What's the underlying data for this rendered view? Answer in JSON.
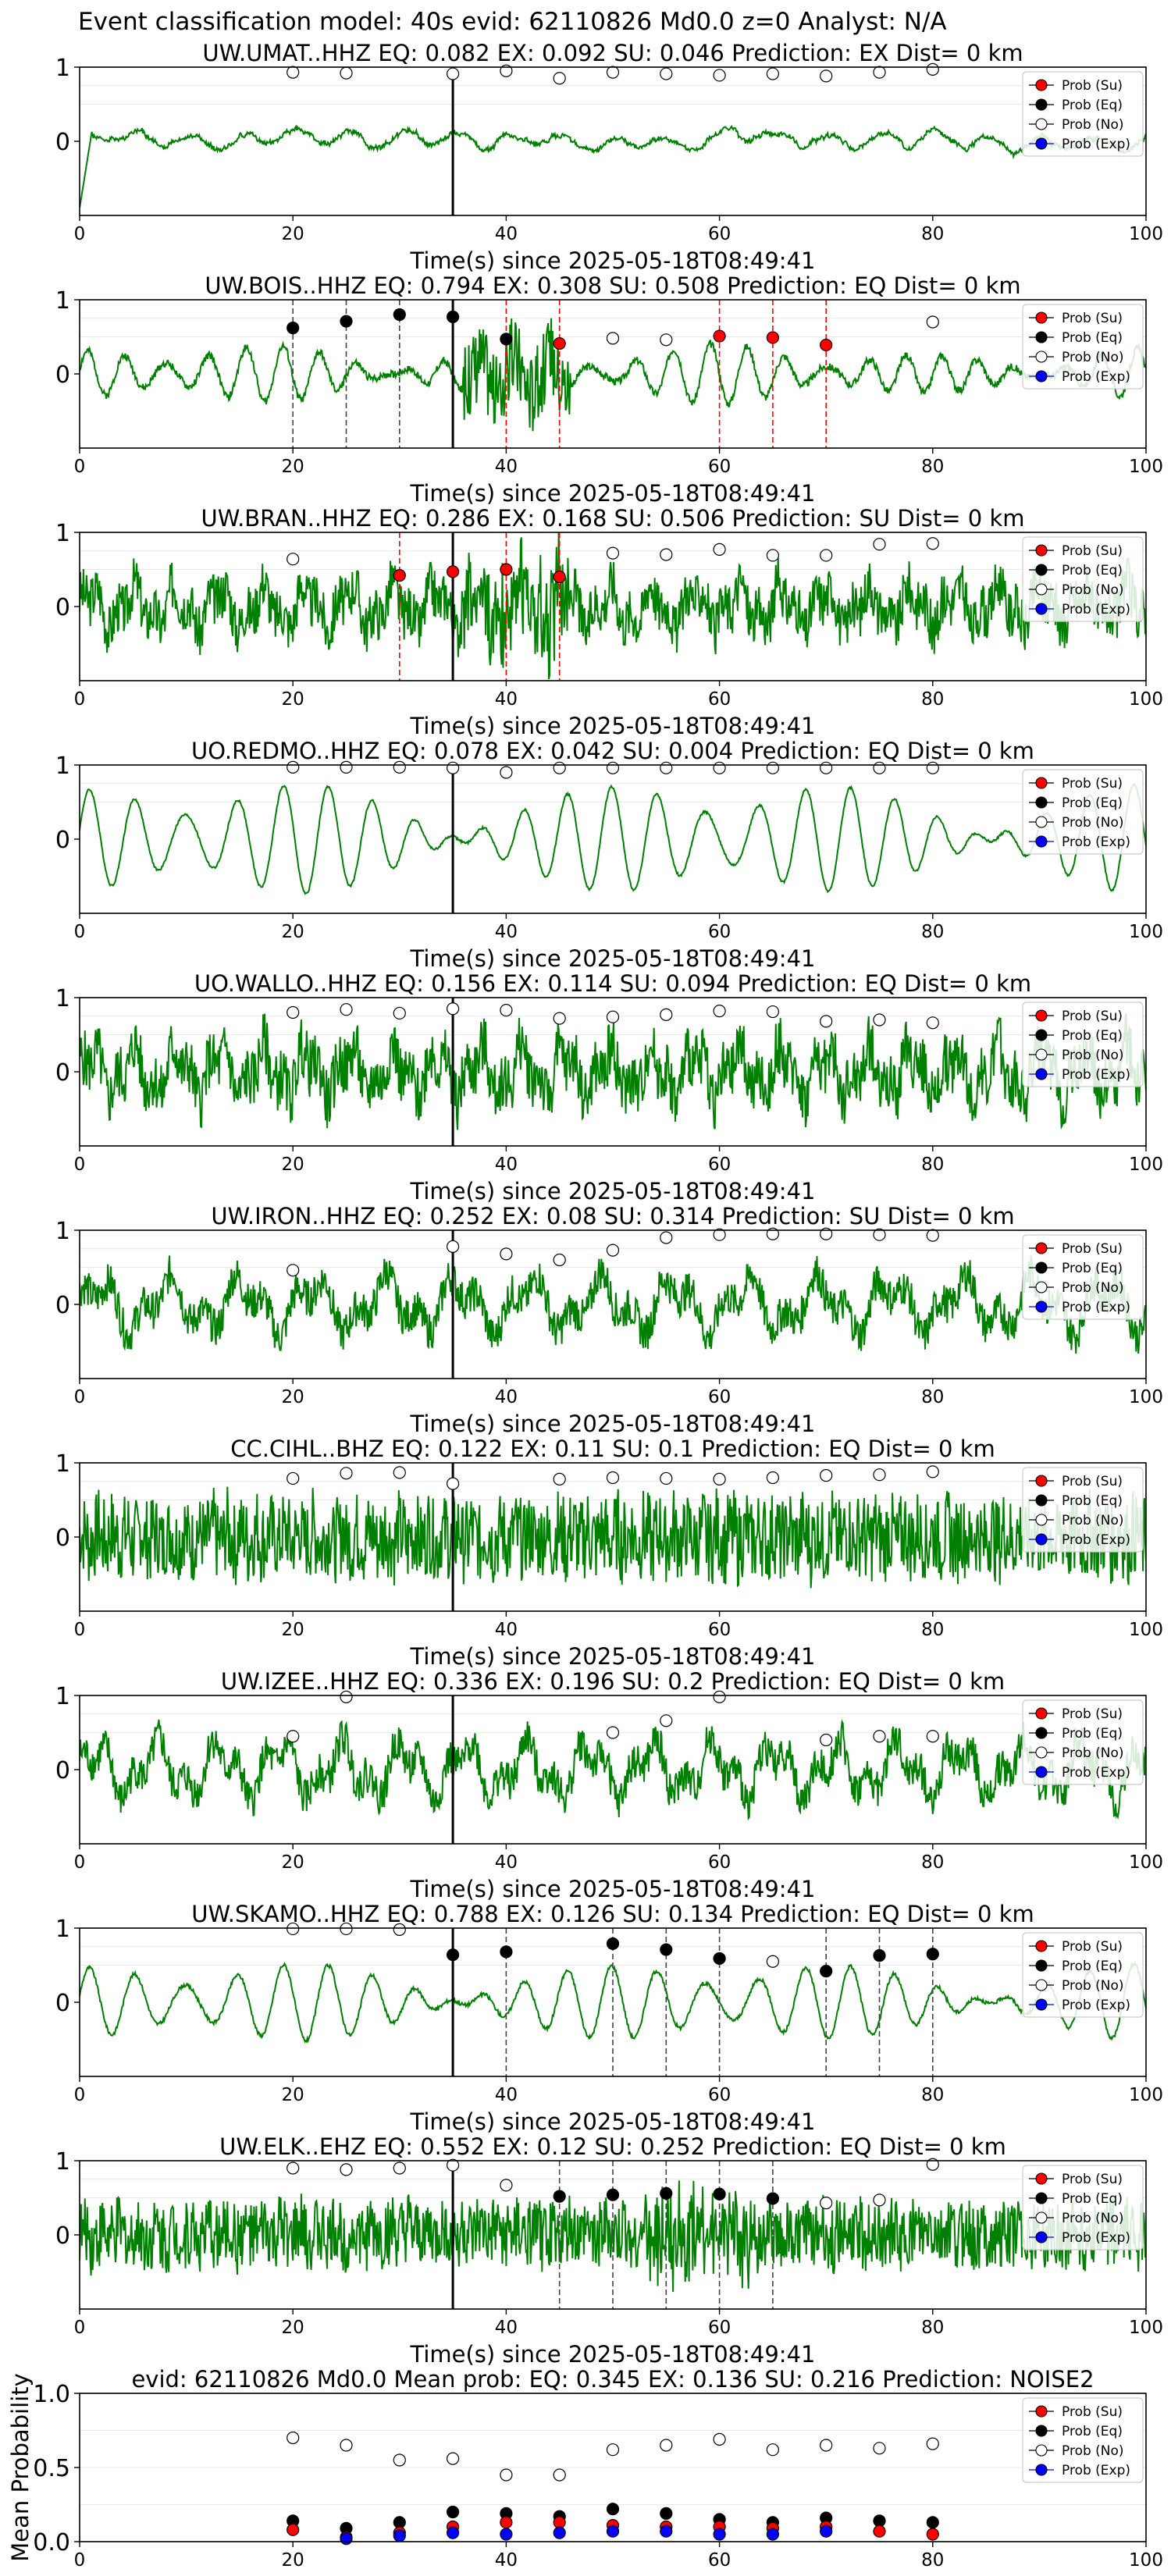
{
  "figure": {
    "suptitle": "Event classification model: 40s evid: 62110826 Md0.0 z=0 Analyst: N/A",
    "xlabel": "Time(s) since 2025-05-18T08:49:41",
    "legend": [
      "Prob (Su)",
      "Prob (Eq)",
      "Prob (No)",
      "Prob (Exp)"
    ]
  },
  "colors": {
    "waveform": "#008000",
    "su": "#ff0000",
    "eq": "#000000",
    "no": "#ffffff",
    "exp": "#0000ff",
    "su_line": "#ff0000",
    "eq_line": "#444444"
  },
  "chart_data": [
    {
      "type": "line",
      "title": "UW.UMAT..HHZ   EQ: 0.082  EX: 0.092  SU: 0.046   Prediction: EX    Dist= 0 km",
      "xlim": [
        0,
        100
      ],
      "ylim": [
        -1,
        1
      ],
      "xticks": [
        0,
        20,
        40,
        60,
        80,
        100
      ],
      "yticks": [
        0,
        1
      ],
      "pick_time": 35,
      "waveform": {
        "style": "drift",
        "amp": 0.22,
        "noise": 0.05,
        "freq": 0.6,
        "seed": 1
      },
      "points_su": [],
      "points_eq": [],
      "points_exp": [],
      "points_no": [
        [
          20,
          0.93
        ],
        [
          25,
          0.92
        ],
        [
          35,
          0.91
        ],
        [
          40,
          0.95
        ],
        [
          45,
          0.85
        ],
        [
          50,
          0.93
        ],
        [
          55,
          0.91
        ],
        [
          60,
          0.89
        ],
        [
          65,
          0.91
        ],
        [
          70,
          0.88
        ],
        [
          75,
          0.93
        ],
        [
          80,
          0.97
        ]
      ],
      "vlines_su": [],
      "vlines_eq": []
    },
    {
      "type": "line",
      "title": "UW.BOIS..HHZ   EQ: 0.794  EX: 0.308  SU: 0.508   Prediction: EQ    Dist= 0 km",
      "xlim": [
        0,
        100
      ],
      "ylim": [
        -1,
        1
      ],
      "xticks": [
        0,
        20,
        40,
        60,
        80,
        100
      ],
      "yticks": [
        0,
        1
      ],
      "pick_time": 35,
      "waveform": {
        "style": "osc",
        "amp": 0.28,
        "noise": 0.1,
        "freq": 0.55,
        "seed": 2,
        "burst": [
          36,
          46,
          0.55
        ]
      },
      "points_su": [
        [
          45,
          0.41
        ],
        [
          60,
          0.51
        ],
        [
          65,
          0.49
        ],
        [
          70,
          0.39
        ]
      ],
      "points_eq": [
        [
          20,
          0.62
        ],
        [
          25,
          0.71
        ],
        [
          30,
          0.8
        ],
        [
          35,
          0.77
        ],
        [
          40,
          0.47
        ]
      ],
      "points_exp": [],
      "points_no": [
        [
          50,
          0.48
        ],
        [
          55,
          0.46
        ],
        [
          80,
          0.7
        ]
      ],
      "vlines_su": [
        40,
        45,
        60,
        65,
        70
      ],
      "vlines_eq": [
        20,
        25,
        30,
        35
      ]
    },
    {
      "type": "line",
      "title": "UW.BRAN..HHZ   EQ: 0.286  EX: 0.168  SU: 0.506   Prediction: SU    Dist= 0 km",
      "xlim": [
        0,
        100
      ],
      "ylim": [
        -1,
        1
      ],
      "xticks": [
        0,
        20,
        40,
        60,
        80,
        100
      ],
      "yticks": [
        0,
        1
      ],
      "pick_time": 35,
      "waveform": {
        "style": "noisy",
        "amp": 0.35,
        "noise": 0.35,
        "freq": 0.5,
        "seed": 3,
        "burst": [
          36,
          46,
          0.5
        ]
      },
      "points_su": [
        [
          30,
          0.42
        ],
        [
          35,
          0.47
        ],
        [
          40,
          0.5
        ],
        [
          45,
          0.4
        ]
      ],
      "points_eq": [],
      "points_exp": [],
      "points_no": [
        [
          20,
          0.64
        ],
        [
          50,
          0.72
        ],
        [
          55,
          0.7
        ],
        [
          60,
          0.77
        ],
        [
          65,
          0.69
        ],
        [
          70,
          0.69
        ],
        [
          75,
          0.84
        ],
        [
          80,
          0.85
        ]
      ],
      "vlines_su": [
        30,
        35,
        40,
        45
      ],
      "vlines_eq": []
    },
    {
      "type": "line",
      "title": "UO.REDMO..HHZ   EQ: 0.078  EX: 0.042  SU: 0.004   Prediction: EQ    Dist= 0 km",
      "xlim": [
        0,
        100
      ],
      "ylim": [
        -1,
        1
      ],
      "xticks": [
        0,
        20,
        40,
        60,
        80,
        100
      ],
      "yticks": [
        0,
        1
      ],
      "pick_time": 35,
      "waveform": {
        "style": "osc",
        "amp": 0.6,
        "noise": 0.03,
        "freq": 0.45,
        "seed": 4
      },
      "points_su": [],
      "points_eq": [],
      "points_exp": [],
      "points_no": [
        [
          20,
          0.97
        ],
        [
          25,
          0.97
        ],
        [
          30,
          0.97
        ],
        [
          35,
          0.96
        ],
        [
          40,
          0.9
        ],
        [
          45,
          0.96
        ],
        [
          50,
          0.96
        ],
        [
          55,
          0.96
        ],
        [
          60,
          0.96
        ],
        [
          65,
          0.96
        ],
        [
          70,
          0.96
        ],
        [
          75,
          0.96
        ],
        [
          80,
          0.96
        ]
      ],
      "vlines_su": [],
      "vlines_eq": []
    },
    {
      "type": "line",
      "title": "UO.WALLO..HHZ   EQ: 0.156  EX: 0.114  SU: 0.094   Prediction: EQ    Dist= 0 km",
      "xlim": [
        0,
        100
      ],
      "ylim": [
        -1,
        1
      ],
      "xticks": [
        0,
        20,
        40,
        60,
        80,
        100
      ],
      "yticks": [
        0,
        1
      ],
      "pick_time": 35,
      "waveform": {
        "style": "noisy",
        "amp": 0.4,
        "noise": 0.4,
        "freq": 0.5,
        "seed": 5
      },
      "points_su": [],
      "points_eq": [],
      "points_exp": [],
      "points_no": [
        [
          20,
          0.8
        ],
        [
          25,
          0.84
        ],
        [
          30,
          0.79
        ],
        [
          35,
          0.85
        ],
        [
          40,
          0.83
        ],
        [
          45,
          0.72
        ],
        [
          50,
          0.74
        ],
        [
          55,
          0.77
        ],
        [
          60,
          0.82
        ],
        [
          65,
          0.81
        ],
        [
          70,
          0.68
        ],
        [
          75,
          0.7
        ],
        [
          80,
          0.66
        ]
      ],
      "vlines_su": [],
      "vlines_eq": []
    },
    {
      "type": "line",
      "title": "UW.IRON..HHZ   EQ: 0.252  EX: 0.08  SU: 0.314   Prediction: SU    Dist= 0 km",
      "xlim": [
        0,
        100
      ],
      "ylim": [
        -1,
        1
      ],
      "xticks": [
        0,
        20,
        40,
        60,
        80,
        100
      ],
      "yticks": [
        0,
        1
      ],
      "pick_time": 35,
      "waveform": {
        "style": "noisy",
        "amp": 0.45,
        "noise": 0.25,
        "freq": 0.3,
        "seed": 6
      },
      "points_su": [],
      "points_eq": [],
      "points_exp": [],
      "points_no": [
        [
          20,
          0.46
        ],
        [
          35,
          0.78
        ],
        [
          40,
          0.68
        ],
        [
          45,
          0.6
        ],
        [
          50,
          0.73
        ],
        [
          55,
          0.9
        ],
        [
          60,
          0.94
        ],
        [
          65,
          0.95
        ],
        [
          70,
          0.95
        ],
        [
          75,
          0.94
        ],
        [
          80,
          0.93
        ]
      ],
      "vlines_su": [],
      "vlines_eq": []
    },
    {
      "type": "line",
      "title": "CC.CIHL..BHZ   EQ: 0.122  EX: 0.11  SU: 0.1   Prediction: EQ    Dist= 0 km",
      "xlim": [
        0,
        100
      ],
      "ylim": [
        -1,
        1
      ],
      "xticks": [
        0,
        20,
        40,
        60,
        80,
        100
      ],
      "yticks": [
        0,
        1
      ],
      "pick_time": 35,
      "waveform": {
        "style": "noisy",
        "amp": 0.15,
        "noise": 0.55,
        "freq": 1.5,
        "seed": 7
      },
      "points_su": [],
      "points_eq": [],
      "points_exp": [],
      "points_no": [
        [
          20,
          0.79
        ],
        [
          25,
          0.86
        ],
        [
          30,
          0.87
        ],
        [
          35,
          0.72
        ],
        [
          45,
          0.78
        ],
        [
          50,
          0.8
        ],
        [
          55,
          0.79
        ],
        [
          60,
          0.78
        ],
        [
          65,
          0.8
        ],
        [
          70,
          0.83
        ],
        [
          75,
          0.84
        ],
        [
          80,
          0.88
        ]
      ],
      "vlines_su": [],
      "vlines_eq": []
    },
    {
      "type": "line",
      "title": "UW.IZEE..HHZ   EQ: 0.336  EX: 0.196  SU: 0.2   Prediction: EQ    Dist= 0 km",
      "xlim": [
        0,
        100
      ],
      "ylim": [
        -1,
        1
      ],
      "xticks": [
        0,
        20,
        40,
        60,
        80,
        100
      ],
      "yticks": [
        0,
        1
      ],
      "pick_time": 35,
      "waveform": {
        "style": "noisy",
        "amp": 0.45,
        "noise": 0.25,
        "freq": 0.35,
        "seed": 8
      },
      "points_su": [],
      "points_eq": [],
      "points_exp": [],
      "points_no": [
        [
          20,
          0.45
        ],
        [
          25,
          0.98
        ],
        [
          50,
          0.5
        ],
        [
          55,
          0.66
        ],
        [
          60,
          0.98
        ],
        [
          70,
          0.4
        ],
        [
          75,
          0.45
        ],
        [
          80,
          0.45
        ]
      ],
      "vlines_su": [],
      "vlines_eq": []
    },
    {
      "type": "line",
      "title": "UW.SKAMO..HHZ   EQ: 0.788  EX: 0.126  SU: 0.134   Prediction: EQ    Dist= 0 km",
      "xlim": [
        0,
        100
      ],
      "ylim": [
        -1,
        1
      ],
      "xticks": [
        0,
        20,
        40,
        60,
        80,
        100
      ],
      "yticks": [
        0,
        1
      ],
      "pick_time": 35,
      "waveform": {
        "style": "osc",
        "amp": 0.42,
        "noise": 0.05,
        "freq": 0.45,
        "seed": 9
      },
      "points_su": [],
      "points_eq": [
        [
          35,
          0.64
        ],
        [
          40,
          0.68
        ],
        [
          50,
          0.79
        ],
        [
          55,
          0.71
        ],
        [
          60,
          0.59
        ],
        [
          70,
          0.42
        ],
        [
          75,
          0.63
        ],
        [
          80,
          0.65
        ]
      ],
      "points_exp": [],
      "points_no": [
        [
          20,
          0.99
        ],
        [
          25,
          0.99
        ],
        [
          30,
          0.98
        ],
        [
          65,
          0.55
        ]
      ],
      "vlines_su": [],
      "vlines_eq": [
        35,
        40,
        50,
        55,
        60,
        70,
        75,
        80
      ]
    },
    {
      "type": "line",
      "title": "UW.ELK..EHZ   EQ: 0.552  EX: 0.12  SU: 0.252   Prediction: EQ    Dist= 0 km",
      "xlim": [
        0,
        100
      ],
      "ylim": [
        -1,
        1
      ],
      "xticks": [
        0,
        20,
        40,
        60,
        80,
        100
      ],
      "yticks": [
        0,
        1
      ],
      "pick_time": 35,
      "waveform": {
        "style": "noisy",
        "amp": 0.12,
        "noise": 0.45,
        "freq": 1.2,
        "seed": 10,
        "burst": [
          53,
          63,
          0.35
        ]
      },
      "points_su": [],
      "points_eq": [
        [
          45,
          0.52
        ],
        [
          50,
          0.54
        ],
        [
          55,
          0.56
        ],
        [
          60,
          0.55
        ],
        [
          65,
          0.49
        ]
      ],
      "points_exp": [],
      "points_no": [
        [
          20,
          0.9
        ],
        [
          25,
          0.88
        ],
        [
          30,
          0.9
        ],
        [
          35,
          0.94
        ],
        [
          40,
          0.67
        ],
        [
          70,
          0.43
        ],
        [
          75,
          0.47
        ],
        [
          80,
          0.95
        ]
      ],
      "vlines_su": [],
      "vlines_eq": [
        45,
        50,
        55,
        60,
        65
      ]
    },
    {
      "type": "scatter",
      "title": "evid: 62110826  Md0.0   Mean prob:   EQ: 0.345  EX: 0.136  SU: 0.216   Prediction: NOISE2",
      "ylabel": "Mean Probability",
      "xlim": [
        0,
        100
      ],
      "ylim": [
        0,
        1
      ],
      "xticks": [
        0,
        20,
        40,
        60,
        80,
        100
      ],
      "yticks": [
        0.0,
        0.5,
        1.0
      ],
      "ytick_labels": [
        "0.0",
        "0.5",
        "1.0"
      ],
      "points_su": [
        [
          20,
          0.08
        ],
        [
          25,
          0.03
        ],
        [
          30,
          0.06
        ],
        [
          35,
          0.1
        ],
        [
          40,
          0.13
        ],
        [
          45,
          0.13
        ],
        [
          50,
          0.11
        ],
        [
          55,
          0.1
        ],
        [
          60,
          0.1
        ],
        [
          65,
          0.09
        ],
        [
          70,
          0.1
        ],
        [
          75,
          0.07
        ],
        [
          80,
          0.05
        ]
      ],
      "points_eq": [
        [
          20,
          0.14
        ],
        [
          25,
          0.09
        ],
        [
          30,
          0.13
        ],
        [
          35,
          0.2
        ],
        [
          40,
          0.19
        ],
        [
          45,
          0.17
        ],
        [
          50,
          0.22
        ],
        [
          55,
          0.19
        ],
        [
          60,
          0.15
        ],
        [
          65,
          0.13
        ],
        [
          70,
          0.16
        ],
        [
          75,
          0.14
        ],
        [
          80,
          0.13
        ]
      ],
      "points_exp": [
        [
          25,
          0.02
        ],
        [
          30,
          0.04
        ],
        [
          35,
          0.06
        ],
        [
          40,
          0.05
        ],
        [
          45,
          0.06
        ],
        [
          50,
          0.07
        ],
        [
          55,
          0.07
        ],
        [
          60,
          0.05
        ],
        [
          65,
          0.05
        ],
        [
          70,
          0.07
        ]
      ],
      "points_no": [
        [
          20,
          0.7
        ],
        [
          25,
          0.65
        ],
        [
          30,
          0.55
        ],
        [
          35,
          0.56
        ],
        [
          40,
          0.45
        ],
        [
          45,
          0.45
        ],
        [
          50,
          0.62
        ],
        [
          55,
          0.65
        ],
        [
          60,
          0.69
        ],
        [
          65,
          0.62
        ],
        [
          70,
          0.65
        ],
        [
          75,
          0.63
        ],
        [
          80,
          0.66
        ]
      ],
      "vlines_su": [],
      "vlines_eq": []
    }
  ]
}
